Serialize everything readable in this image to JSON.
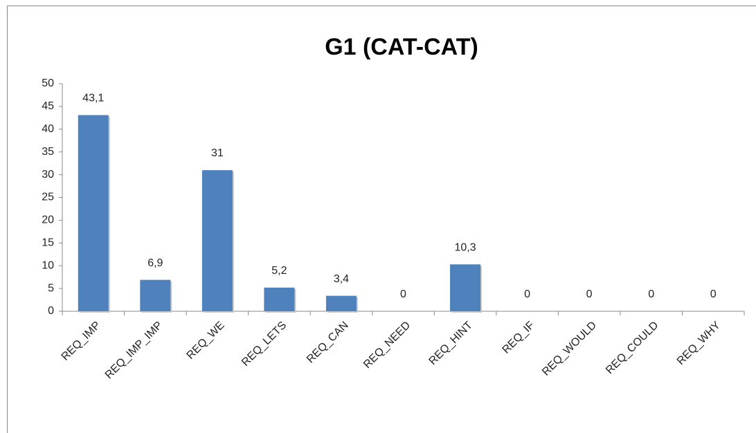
{
  "chart_data": {
    "type": "bar",
    "title": "G1 (CAT-CAT)",
    "categories": [
      "REQ_IMP",
      "REQ_IMP_IMP",
      "REQ_WE",
      "REQ_LETS",
      "REQ_CAN",
      "REQ_NEED",
      "REQ_HINT",
      "REQ_IF",
      "REQ_WOULD",
      "REQ_COULD",
      "REQ_WHY"
    ],
    "values": [
      43.1,
      6.9,
      31,
      5.2,
      3.4,
      0,
      10.3,
      0,
      0,
      0,
      0
    ],
    "value_labels": [
      "43,1",
      "6,9",
      "31",
      "5,2",
      "3,4",
      "0",
      "10,3",
      "0",
      "0",
      "0",
      "0"
    ],
    "color": "#4f81bd",
    "ylim": [
      0,
      50
    ],
    "yticks": [
      0,
      5,
      10,
      15,
      20,
      25,
      30,
      35,
      40,
      45,
      50
    ],
    "grid": false
  }
}
